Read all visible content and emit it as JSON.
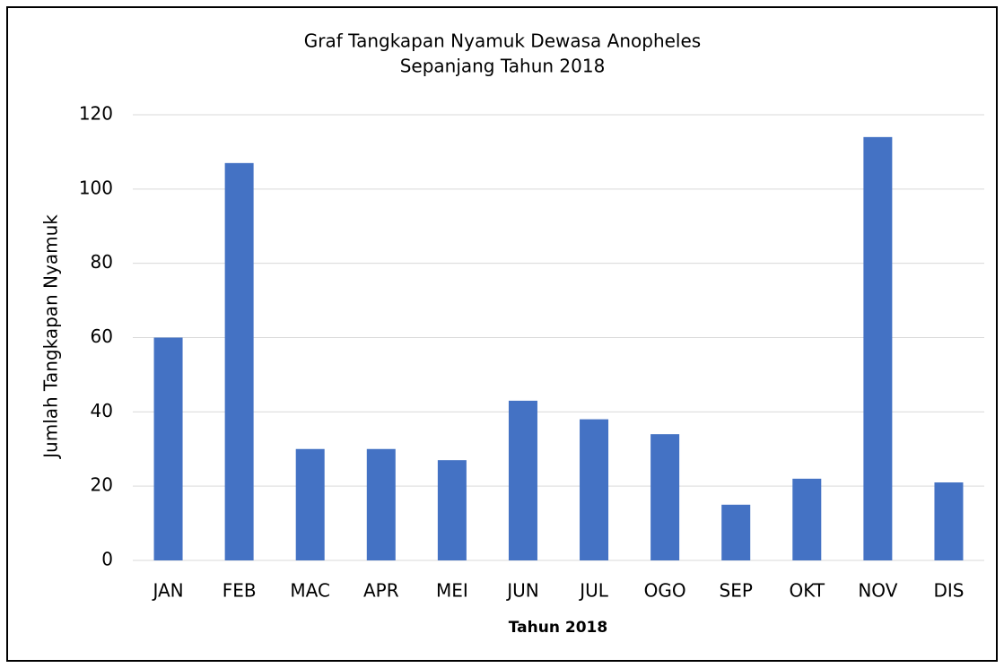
{
  "chart_data": {
    "type": "bar",
    "title": [
      "Graf Tangkapan Nyamuk Dewasa Anopheles",
      "Sepanjang Tahun 2018"
    ],
    "x_label": "Tahun 2018",
    "y_label": "Jumlah Tangkapan Nyamuk",
    "categories": [
      "JAN",
      "FEB",
      "MAC",
      "APR",
      "MEI",
      "JUN",
      "JUL",
      "OGO",
      "SEP",
      "OKT",
      "NOV",
      "DIS"
    ],
    "values": [
      60,
      107,
      30,
      30,
      27,
      43,
      38,
      34,
      15,
      22,
      114,
      21
    ],
    "color": "#4472c4",
    "ylim": [
      0,
      120
    ],
    "yticks": [
      0,
      20,
      40,
      60,
      80,
      100,
      120
    ],
    "grid": true
  }
}
